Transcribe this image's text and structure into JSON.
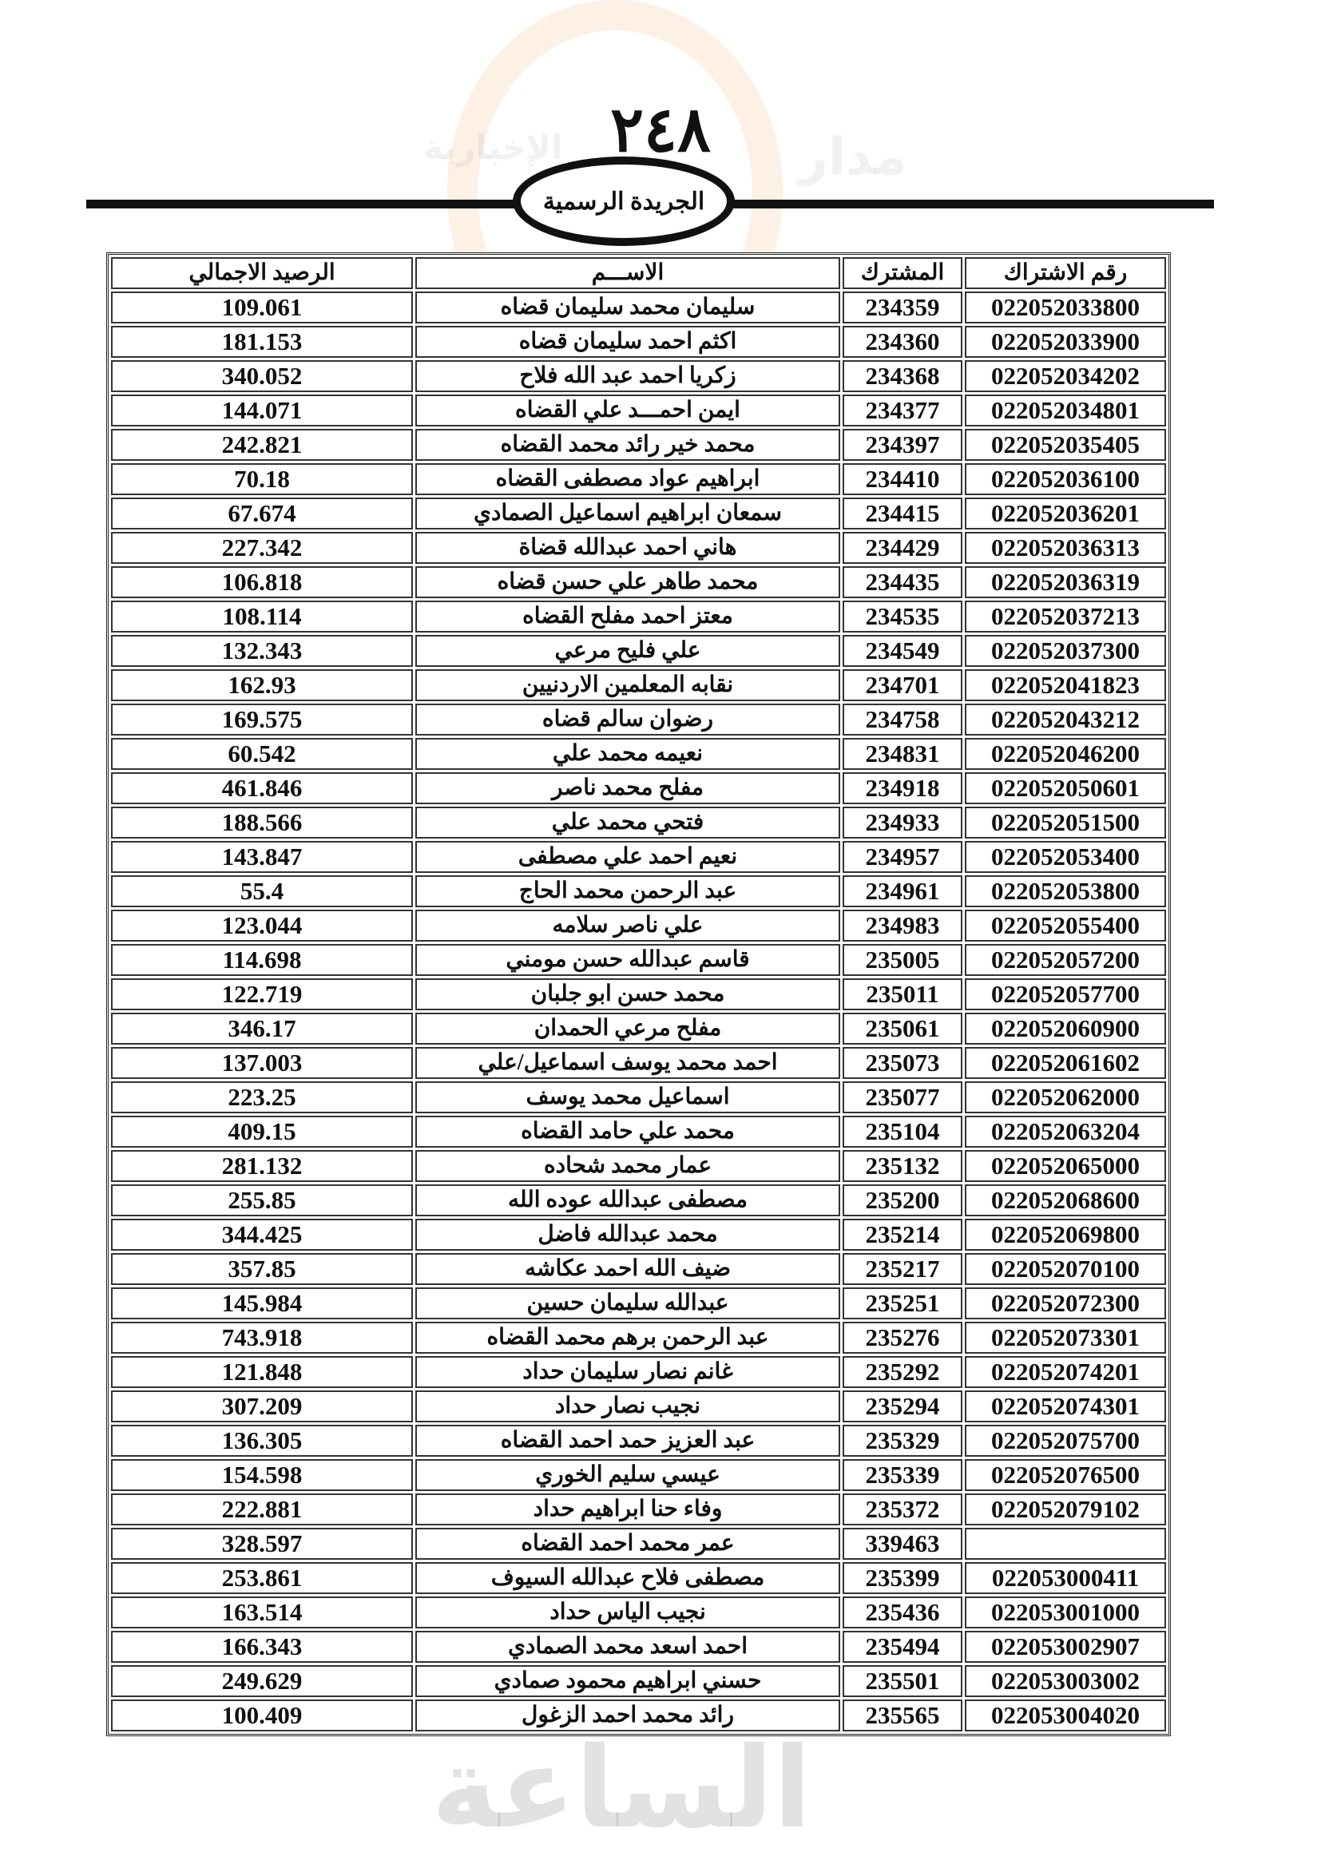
{
  "page_number": "٢٤٨",
  "publication_title": "الجريدة الرسمية",
  "watermark": {
    "text_top": "مدار",
    "text_side": "الإخبارية",
    "text_big": "الساعة",
    "colors": [
      "#f5a05a",
      "#969696"
    ]
  },
  "table": {
    "headers": {
      "balance": "الرصيد الاجمالي",
      "name": "الاســـم",
      "subscriber": "المشترك",
      "account": "رقم الاشتراك"
    },
    "rows": [
      {
        "account": "022052033800",
        "subscriber": "234359",
        "name": "سليمان محمد سليمان قضاه",
        "balance": "109.061"
      },
      {
        "account": "022052033900",
        "subscriber": "234360",
        "name": "اكثم احمد سليمان قضاه",
        "balance": "181.153"
      },
      {
        "account": "022052034202",
        "subscriber": "234368",
        "name": "زكريا احمد عبد الله فلاح",
        "balance": "340.052"
      },
      {
        "account": "022052034801",
        "subscriber": "234377",
        "name": "ايمن احمـــد علي القضاه",
        "balance": "144.071"
      },
      {
        "account": "022052035405",
        "subscriber": "234397",
        "name": "محمد خير رائد محمد القضاه",
        "balance": "242.821"
      },
      {
        "account": "022052036100",
        "subscriber": "234410",
        "name": "ابراهيم عواد مصطفى القضاه",
        "balance": "70.18"
      },
      {
        "account": "022052036201",
        "subscriber": "234415",
        "name": "سمعان ابراهيم اسماعيل الصمادي",
        "balance": "67.674"
      },
      {
        "account": "022052036313",
        "subscriber": "234429",
        "name": "هاني احمد عبدالله قضاة",
        "balance": "227.342"
      },
      {
        "account": "022052036319",
        "subscriber": "234435",
        "name": "محمد طاهر علي حسن قضاه",
        "balance": "106.818"
      },
      {
        "account": "022052037213",
        "subscriber": "234535",
        "name": "معتز احمد مفلح القضاه",
        "balance": "108.114"
      },
      {
        "account": "022052037300",
        "subscriber": "234549",
        "name": "علي فليح مرعي",
        "balance": "132.343"
      },
      {
        "account": "022052041823",
        "subscriber": "234701",
        "name": "نقابه المعلمين الاردنيين",
        "balance": "162.93"
      },
      {
        "account": "022052043212",
        "subscriber": "234758",
        "name": "رضوان سالم قضاه",
        "balance": "169.575"
      },
      {
        "account": "022052046200",
        "subscriber": "234831",
        "name": "نعيمه محمد علي",
        "balance": "60.542"
      },
      {
        "account": "022052050601",
        "subscriber": "234918",
        "name": "مفلح محمد ناصر",
        "balance": "461.846"
      },
      {
        "account": "022052051500",
        "subscriber": "234933",
        "name": "فتحي محمد علي",
        "balance": "188.566"
      },
      {
        "account": "022052053400",
        "subscriber": "234957",
        "name": "نعيم احمد علي مصطفى",
        "balance": "143.847"
      },
      {
        "account": "022052053800",
        "subscriber": "234961",
        "name": "عبد الرحمن محمد الحاج",
        "balance": "55.4"
      },
      {
        "account": "022052055400",
        "subscriber": "234983",
        "name": "علي ناصر سلامه",
        "balance": "123.044"
      },
      {
        "account": "022052057200",
        "subscriber": "235005",
        "name": "قاسم عبدالله حسن مومني",
        "balance": "114.698"
      },
      {
        "account": "022052057700",
        "subscriber": "235011",
        "name": "محمد حسن ابو جلبان",
        "balance": "122.719"
      },
      {
        "account": "022052060900",
        "subscriber": "235061",
        "name": "مفلح مرعي الحمدان",
        "balance": "346.17"
      },
      {
        "account": "022052061602",
        "subscriber": "235073",
        "name": "احمد محمد يوسف اسماعيل/علي",
        "balance": "137.003"
      },
      {
        "account": "022052062000",
        "subscriber": "235077",
        "name": "اسماعيل محمد يوسف",
        "balance": "223.25"
      },
      {
        "account": "022052063204",
        "subscriber": "235104",
        "name": "محمد علي حامد القضاه",
        "balance": "409.15"
      },
      {
        "account": "022052065000",
        "subscriber": "235132",
        "name": "عمار محمد شحاده",
        "balance": "281.132"
      },
      {
        "account": "022052068600",
        "subscriber": "235200",
        "name": "مصطفى عبدالله عوده الله",
        "balance": "255.85"
      },
      {
        "account": "022052069800",
        "subscriber": "235214",
        "name": "محمد عبدالله فاضل",
        "balance": "344.425"
      },
      {
        "account": "022052070100",
        "subscriber": "235217",
        "name": "ضيف الله احمد عكاشه",
        "balance": "357.85"
      },
      {
        "account": "022052072300",
        "subscriber": "235251",
        "name": "عبدالله سليمان حسين",
        "balance": "145.984"
      },
      {
        "account": "022052073301",
        "subscriber": "235276",
        "name": "عبد الرحمن برهم محمد القضاه",
        "balance": "743.918"
      },
      {
        "account": "022052074201",
        "subscriber": "235292",
        "name": "غانم نصار سليمان حداد",
        "balance": "121.848"
      },
      {
        "account": "022052074301",
        "subscriber": "235294",
        "name": "نجيب نصار حداد",
        "balance": "307.209"
      },
      {
        "account": "022052075700",
        "subscriber": "235329",
        "name": "عبد العزيز حمد احمد القضاه",
        "balance": "136.305"
      },
      {
        "account": "022052076500",
        "subscriber": "235339",
        "name": "عيسي سليم الخوري",
        "balance": "154.598"
      },
      {
        "account": "022052079102",
        "subscriber": "235372",
        "name": "وفاء حنا ابراهيم حداد",
        "balance": "222.881"
      },
      {
        "account": "",
        "subscriber": "339463",
        "name": "عمر محمد احمد القضاه",
        "balance": "328.597"
      },
      {
        "account": "022053000411",
        "subscriber": "235399",
        "name": "مصطفى فلاح عبدالله السيوف",
        "balance": "253.861"
      },
      {
        "account": "022053001000",
        "subscriber": "235436",
        "name": "نجيب الياس حداد",
        "balance": "163.514"
      },
      {
        "account": "022053002907",
        "subscriber": "235494",
        "name": "احمد اسعد محمد الصمادي",
        "balance": "166.343"
      },
      {
        "account": "022053003002",
        "subscriber": "235501",
        "name": "حسني ابراهيم محمود صمادي",
        "balance": "249.629"
      },
      {
        "account": "022053004020",
        "subscriber": "235565",
        "name": "رائد محمد احمد الزغول",
        "balance": "100.409"
      }
    ]
  }
}
